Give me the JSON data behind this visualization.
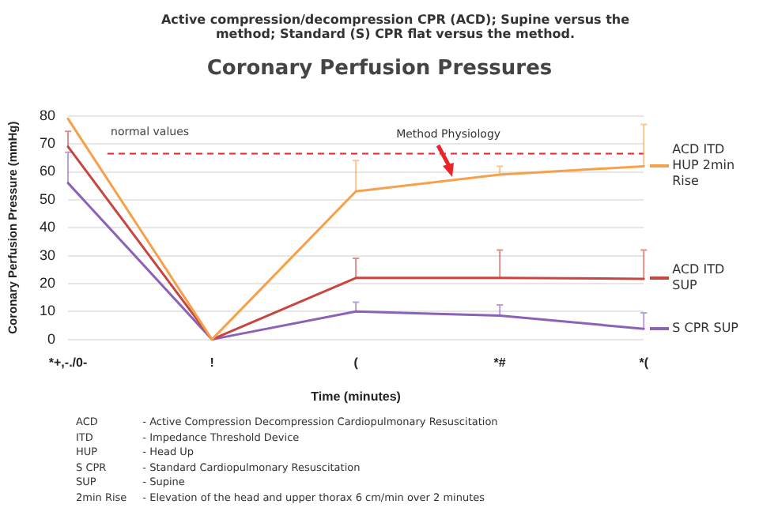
{
  "chart_data": {
    "type": "line",
    "subtitle": "Active compression/decompression CPR (ACD); Supine versus the method; Standard (S) CPR flat versus the method.",
    "title": "Coronary Perfusion Pressures",
    "xlabel": "Time (minutes)",
    "ylabel": "Coronary Perfusion Pressure (mmHg)",
    "categories": [
      "*+,-./0-",
      "!",
      "(",
      "*#",
      "*("
    ],
    "series": [
      {
        "name": "ACD ITD HUP 2min Rise",
        "color": "#f7a04a",
        "values": [
          79,
          0,
          53,
          59,
          62
        ],
        "errors": [
          null,
          null,
          [
            53,
            64
          ],
          [
            59,
            62
          ],
          [
            62,
            77
          ]
        ]
      },
      {
        "name": "ACD ITD SUP",
        "color": "#c8463f",
        "values": [
          69,
          0,
          22,
          22,
          21.7
        ],
        "errors": [
          [
            69,
            74.5
          ],
          null,
          [
            22,
            29
          ],
          [
            22,
            32
          ],
          [
            21.7,
            32
          ]
        ]
      },
      {
        "name": "S CPR SUP",
        "color": "#8a63b8",
        "values": [
          56,
          0,
          10,
          8.5,
          3.8
        ],
        "errors": [
          [
            56,
            67
          ],
          null,
          [
            10,
            13.3
          ],
          [
            8.5,
            12.3
          ],
          [
            3.8,
            9.5
          ]
        ]
      }
    ],
    "ylim": [
      0,
      80
    ],
    "yticks": [
      0,
      10,
      20,
      30,
      40,
      50,
      60,
      70,
      80
    ],
    "grid": "y",
    "legend": "right",
    "marker": "none",
    "line_style": "solid",
    "ref_lines": [
      {
        "axis": "y",
        "value": 66.5,
        "label": "normal values",
        "color": "#e8262a",
        "line_style": "dashed"
      }
    ],
    "annotations": [
      "Method Physiology",
      "ACD - Active Compression Decompression Cardiopulmonary Resuscitation",
      "ITD - Impedance Threshold Device",
      "HUP - Head Up",
      "S CPR - Standard Cardiopulmonary Resuscitation",
      "SUP - Supine",
      "2min Rise - Elevation of the head and upper thorax 6 cm/min over 2 minutes"
    ]
  }
}
